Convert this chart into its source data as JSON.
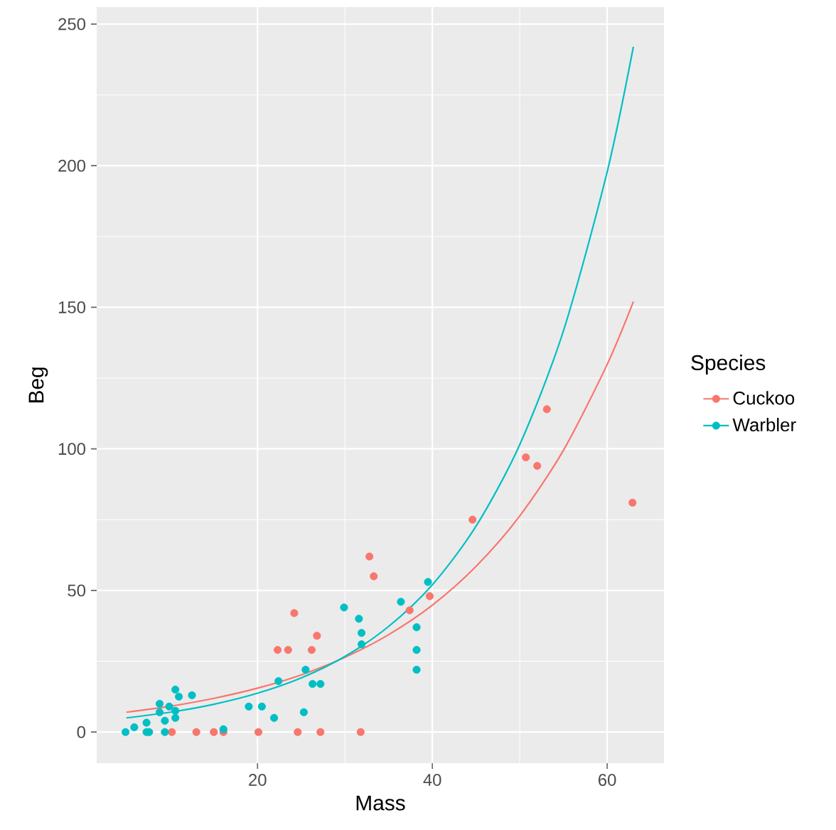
{
  "chart_data": {
    "type": "scatter",
    "xlabel": "Mass",
    "ylabel": "Beg",
    "legend_title": "Species",
    "xlim": [
      1.6,
      66.5
    ],
    "ylim": [
      -11,
      256
    ],
    "xticks": [
      20,
      40,
      60
    ],
    "yticks": [
      0,
      50,
      100,
      150,
      200,
      250
    ],
    "grid": true,
    "legend": "right",
    "marker": "circle",
    "series": [
      {
        "name": "Cuckoo",
        "color": "#f8766d",
        "x": [
          10.2,
          13.0,
          15.0,
          16.1,
          20.1,
          24.6,
          27.2,
          31.8,
          24.2,
          22.3,
          23.5,
          26.2,
          26.8,
          32.8,
          33.3,
          37.4,
          39.7,
          44.6,
          50.7,
          52.0,
          53.1,
          62.9
        ],
        "values": [
          0,
          0,
          0,
          0,
          0,
          0,
          0,
          0,
          42,
          29,
          29,
          29,
          34,
          62,
          55,
          43,
          48,
          75,
          97,
          94,
          114,
          81
        ]
      },
      {
        "name": "Warbler",
        "color": "#00bfc4",
        "x": [
          4.9,
          5.9,
          7.3,
          7.3,
          7.6,
          9.4,
          8.8,
          8.8,
          9.4,
          9.9,
          10.6,
          10.6,
          10.6,
          11.0,
          12.5,
          16.1,
          19.0,
          20.5,
          21.9,
          22.4,
          25.3,
          25.5,
          26.3,
          27.2,
          29.9,
          31.6,
          31.9,
          31.9,
          36.4,
          38.2,
          38.2,
          38.2,
          39.5
        ],
        "values": [
          0,
          1.7,
          3.3,
          0,
          0,
          0,
          10,
          7,
          4,
          9,
          15,
          7.5,
          5,
          12.5,
          13,
          1,
          9,
          9,
          5,
          18,
          7,
          22,
          17,
          17,
          44,
          40,
          35,
          31,
          46,
          37,
          29,
          22,
          53
        ]
      },
      {
        "type": "line",
        "marker": "none",
        "color": "#f8766d",
        "x": [
          5,
          10,
          15,
          20,
          25,
          30,
          35,
          40,
          45,
          50,
          55,
          60,
          63
        ],
        "values": [
          7,
          9.1,
          11.9,
          15.5,
          20.2,
          26.4,
          34.4,
          44.8,
          58.5,
          76.3,
          99.5,
          129.8,
          152
        ]
      },
      {
        "type": "line",
        "marker": "none",
        "color": "#00bfc4",
        "x": [
          5,
          10,
          15,
          20,
          25,
          30,
          35,
          40,
          45,
          50,
          55,
          60,
          63
        ],
        "values": [
          5,
          7,
          9.8,
          13.7,
          19.1,
          26.7,
          37.3,
          52,
          72.7,
          101.5,
          141.7,
          197.8,
          242
        ]
      }
    ]
  }
}
